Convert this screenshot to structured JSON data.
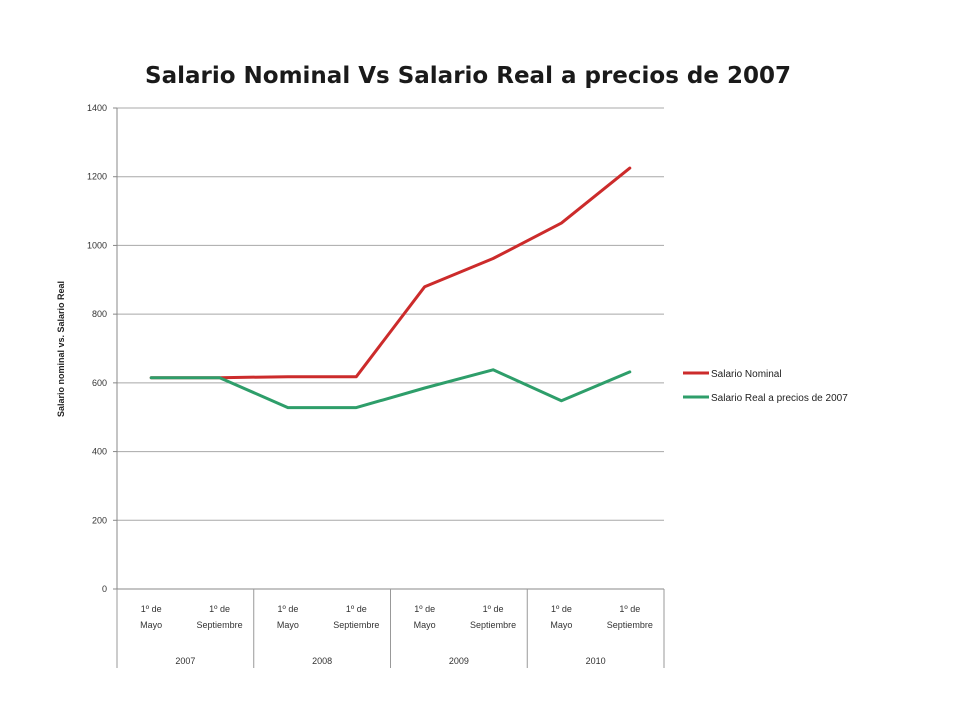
{
  "chart_data": {
    "type": "line",
    "title": "Salario Nominal Vs Salario Real a precios de 2007",
    "xlabel": "",
    "ylabel": "Salario nominal vs. Salario Real",
    "ylim": [
      0,
      1400
    ],
    "yticks": [
      0,
      200,
      400,
      600,
      800,
      1000,
      1200,
      1400
    ],
    "grid": true,
    "legend_position": "right",
    "categories": [
      {
        "label": "1º de Mayo",
        "year": "2007"
      },
      {
        "label": "1º de Septiembre",
        "year": "2007"
      },
      {
        "label": "1º de Mayo",
        "year": "2008"
      },
      {
        "label": "1º de Septiembre",
        "year": "2008"
      },
      {
        "label": "1º de Mayo",
        "year": "2009"
      },
      {
        "label": "1º de Septiembre",
        "year": "2009"
      },
      {
        "label": "1º de Mayo",
        "year": "2010"
      },
      {
        "label": "1º de Septiembre",
        "year": "2010"
      }
    ],
    "groups": [
      "2007",
      "2008",
      "2009",
      "2010"
    ],
    "series": [
      {
        "name": "Salario Nominal",
        "color": "#cc2b2b",
        "values": [
          615,
          615,
          618,
          618,
          880,
          962,
          1065,
          1225
        ]
      },
      {
        "name": "Salario Real a precios de 2007",
        "color": "#2e9e6a",
        "values": [
          615,
          615,
          528,
          528,
          585,
          638,
          548,
          632
        ]
      }
    ]
  }
}
